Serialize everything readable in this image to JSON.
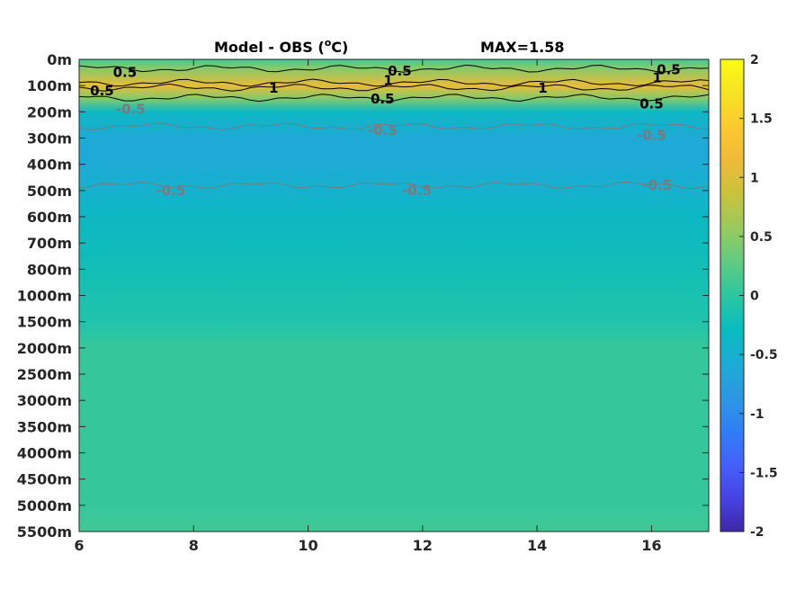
{
  "chart_data": {
    "type": "heatmap",
    "title_left": "Model - OBS (",
    "title_unit_sup": "o",
    "title_unit_rest": "C)",
    "title_right": "MAX=1.58",
    "x_ticks": [
      "6",
      "8",
      "10",
      "12",
      "14",
      "16"
    ],
    "x_tick_values": [
      6,
      8,
      10,
      12,
      14,
      16
    ],
    "xlim": [
      6,
      17
    ],
    "y_ticks": [
      "0m",
      "100m",
      "200m",
      "300m",
      "400m",
      "500m",
      "600m",
      "700m",
      "800m",
      "1000m",
      "1500m",
      "2000m",
      "2500m",
      "3000m",
      "3500m",
      "4000m",
      "4500m",
      "5000m",
      "5500m"
    ],
    "colorbar_ticks": [
      "2",
      "1.5",
      "1",
      "0.5",
      "0",
      "-0.5",
      "-1",
      "-1.5",
      "-2"
    ],
    "colorbar_tick_values": [
      2,
      1.5,
      1,
      0.5,
      0,
      -0.5,
      -1,
      -1.5,
      -2
    ],
    "clim": [
      -2,
      2
    ],
    "colormap": [
      "#3e26a8",
      "#4743e3",
      "#4461f9",
      "#307ff5",
      "#2d98e2",
      "#1cacd5",
      "#09bcbe",
      "#2cc6a0",
      "#61cb82",
      "#99ca5d",
      "#c8c23d",
      "#efba38",
      "#fcc932",
      "#f5e323",
      "#f9fb15"
    ],
    "profile": [
      {
        "depth": "0m",
        "value": 0.1
      },
      {
        "depth": "30m",
        "value": 0.45
      },
      {
        "depth": "100m",
        "value": 1.1
      },
      {
        "depth": "150m",
        "value": 0.45
      },
      {
        "depth": "200m",
        "value": -0.35
      },
      {
        "depth": "300m",
        "value": -0.62
      },
      {
        "depth": "400m",
        "value": -0.58
      },
      {
        "depth": "500m",
        "value": -0.48
      },
      {
        "depth": "600m",
        "value": -0.35
      },
      {
        "depth": "800m",
        "value": -0.22
      },
      {
        "depth": "1000m",
        "value": -0.15
      },
      {
        "depth": "1500m",
        "value": -0.1
      },
      {
        "depth": "2000m",
        "value": 0.05
      },
      {
        "depth": "3000m",
        "value": 0.05
      },
      {
        "depth": "5000m",
        "value": 0.05
      },
      {
        "depth": "5500m",
        "value": 0.1
      }
    ],
    "contour_labels": [
      {
        "text": "0.5",
        "level": 0.5,
        "color": "#000000",
        "x": 6.8,
        "depth": "50m"
      },
      {
        "text": "0.5",
        "level": 0.5,
        "color": "#000000",
        "x": 6.4,
        "depth": "120m"
      },
      {
        "text": "1",
        "level": 1,
        "color": "#000000",
        "x": 9.4,
        "depth": "110m"
      },
      {
        "text": "0.5",
        "level": 0.5,
        "color": "#000000",
        "x": 11.6,
        "depth": "45m"
      },
      {
        "text": "1",
        "level": 1,
        "color": "#000000",
        "x": 11.4,
        "depth": "80m"
      },
      {
        "text": "0.5",
        "level": 0.5,
        "color": "#000000",
        "x": 11.3,
        "depth": "150m"
      },
      {
        "text": "1",
        "level": 1,
        "color": "#000000",
        "x": 14.1,
        "depth": "110m"
      },
      {
        "text": "0.5",
        "level": 0.5,
        "color": "#000000",
        "x": 16.3,
        "depth": "40m"
      },
      {
        "text": "1",
        "level": 1,
        "color": "#000000",
        "x": 16.1,
        "depth": "70m"
      },
      {
        "text": "0.5",
        "level": 0.5,
        "color": "#000000",
        "x": 16.0,
        "depth": "170m"
      },
      {
        "text": "-0.5",
        "level": -0.5,
        "color": "#7a7a7a",
        "x": 6.9,
        "depth": "190m"
      },
      {
        "text": "-0.5",
        "level": -0.5,
        "color": "#7a7a7a",
        "x": 11.3,
        "depth": "270m"
      },
      {
        "text": "-0.5",
        "level": -0.5,
        "color": "#7a7a7a",
        "x": 16.0,
        "depth": "290m"
      },
      {
        "text": "-0.5",
        "level": -0.5,
        "color": "#7a7a7a",
        "x": 7.6,
        "depth": "500m"
      },
      {
        "text": "-0.5",
        "level": -0.5,
        "color": "#7a7a7a",
        "x": 11.9,
        "depth": "500m"
      },
      {
        "text": "-0.5",
        "level": -0.5,
        "color": "#7a7a7a",
        "x": 16.1,
        "depth": "480m"
      }
    ]
  }
}
